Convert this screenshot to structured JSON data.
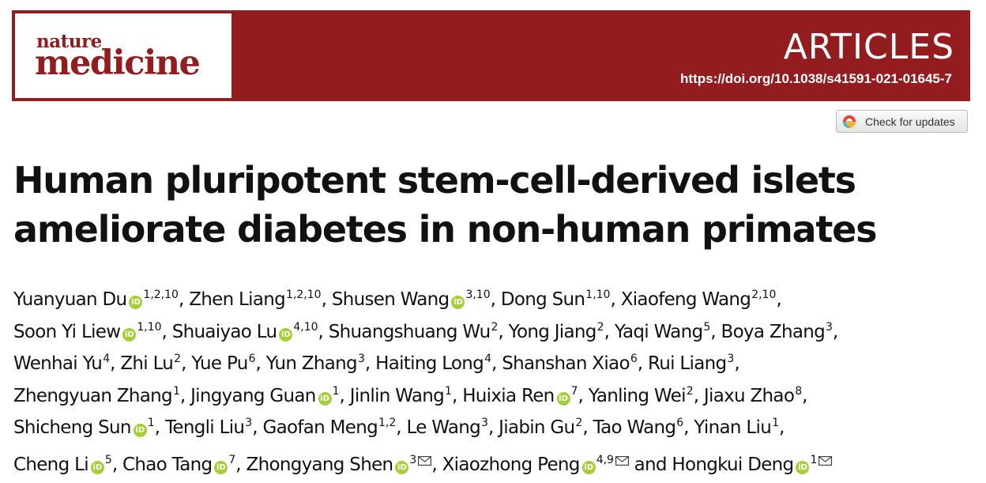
{
  "journal": {
    "name_line1": "nature",
    "name_line2": "medicine"
  },
  "section_label": "ARTICLES",
  "doi": "https://doi.org/10.1038/s41591-021-01645-7",
  "check_updates_label": "Check for updates",
  "title_lines": [
    "Human pluripotent stem-cell-derived islets",
    "ameliorate diabetes in non-human primates"
  ],
  "orcid_glyph": "iD",
  "colors": {
    "brand": "#931c1e",
    "orcid": "#a6ce39"
  },
  "author_lines": [
    [
      {
        "name": "Yuanyuan Du",
        "orcid": true,
        "aff": "1,2,10",
        "sep": ", "
      },
      {
        "name": "Zhen Liang",
        "orcid": false,
        "aff": "1,2,10",
        "sep": ", "
      },
      {
        "name": "Shusen Wang",
        "orcid": true,
        "aff": "3,10",
        "sep": ", "
      },
      {
        "name": "Dong Sun",
        "orcid": false,
        "aff": "1,10",
        "sep": ", "
      },
      {
        "name": "Xiaofeng Wang",
        "orcid": false,
        "aff": "2,10",
        "sep": ","
      }
    ],
    [
      {
        "name": "Soon Yi Liew",
        "orcid": true,
        "aff": "1,10",
        "sep": ", "
      },
      {
        "name": "Shuaiyao Lu",
        "orcid": true,
        "aff": "4,10",
        "sep": ", "
      },
      {
        "name": "Shuangshuang Wu",
        "orcid": false,
        "aff": "2",
        "sep": ", "
      },
      {
        "name": "Yong Jiang",
        "orcid": false,
        "aff": "2",
        "sep": ", "
      },
      {
        "name": "Yaqi Wang",
        "orcid": false,
        "aff": "5",
        "sep": ", "
      },
      {
        "name": "Boya Zhang",
        "orcid": false,
        "aff": "3",
        "sep": ","
      }
    ],
    [
      {
        "name": "Wenhai Yu",
        "orcid": false,
        "aff": "4",
        "sep": ", "
      },
      {
        "name": "Zhi Lu",
        "orcid": false,
        "aff": "2",
        "sep": ", "
      },
      {
        "name": "Yue Pu",
        "orcid": false,
        "aff": "6",
        "sep": ", "
      },
      {
        "name": "Yun Zhang",
        "orcid": false,
        "aff": "3",
        "sep": ", "
      },
      {
        "name": "Haiting Long",
        "orcid": false,
        "aff": "4",
        "sep": ", "
      },
      {
        "name": "Shanshan Xiao",
        "orcid": false,
        "aff": "6",
        "sep": ", "
      },
      {
        "name": "Rui Liang",
        "orcid": false,
        "aff": "3",
        "sep": ","
      }
    ],
    [
      {
        "name": "Zhengyuan Zhang",
        "orcid": false,
        "aff": "1",
        "sep": ", "
      },
      {
        "name": "Jingyang Guan",
        "orcid": true,
        "aff": "1",
        "sep": ", "
      },
      {
        "name": "Jinlin Wang",
        "orcid": false,
        "aff": "1",
        "sep": ", "
      },
      {
        "name": "Huixia Ren",
        "orcid": true,
        "aff": "7",
        "sep": ", "
      },
      {
        "name": "Yanling Wei",
        "orcid": false,
        "aff": "2",
        "sep": ", "
      },
      {
        "name": "Jiaxu Zhao",
        "orcid": false,
        "aff": "8",
        "sep": ","
      }
    ],
    [
      {
        "name": "Shicheng Sun",
        "orcid": true,
        "aff": "1",
        "sep": ", "
      },
      {
        "name": "Tengli Liu",
        "orcid": false,
        "aff": "3",
        "sep": ", "
      },
      {
        "name": "Gaofan Meng",
        "orcid": false,
        "aff": "1,2",
        "sep": ", "
      },
      {
        "name": "Le Wang",
        "orcid": false,
        "aff": "3",
        "sep": ", "
      },
      {
        "name": "Jiabin Gu",
        "orcid": false,
        "aff": "2",
        "sep": ", "
      },
      {
        "name": "Tao Wang",
        "orcid": false,
        "aff": "6",
        "sep": ", "
      },
      {
        "name": "Yinan Liu",
        "orcid": false,
        "aff": "1",
        "sep": ","
      }
    ],
    [
      {
        "name": "Cheng Li",
        "orcid": true,
        "aff": "5",
        "sep": ", "
      },
      {
        "name": "Chao Tang",
        "orcid": true,
        "aff": "7",
        "sep": ", "
      },
      {
        "name": "Zhongyang Shen",
        "orcid": true,
        "aff": "3",
        "mail": true,
        "sep": ", "
      },
      {
        "name": "Xiaozhong Peng",
        "orcid": true,
        "aff": "4,9",
        "mail": true,
        "sep": " and "
      },
      {
        "name": "Hongkui Deng",
        "orcid": true,
        "aff": "1",
        "mail": true,
        "sep": ""
      }
    ]
  ]
}
